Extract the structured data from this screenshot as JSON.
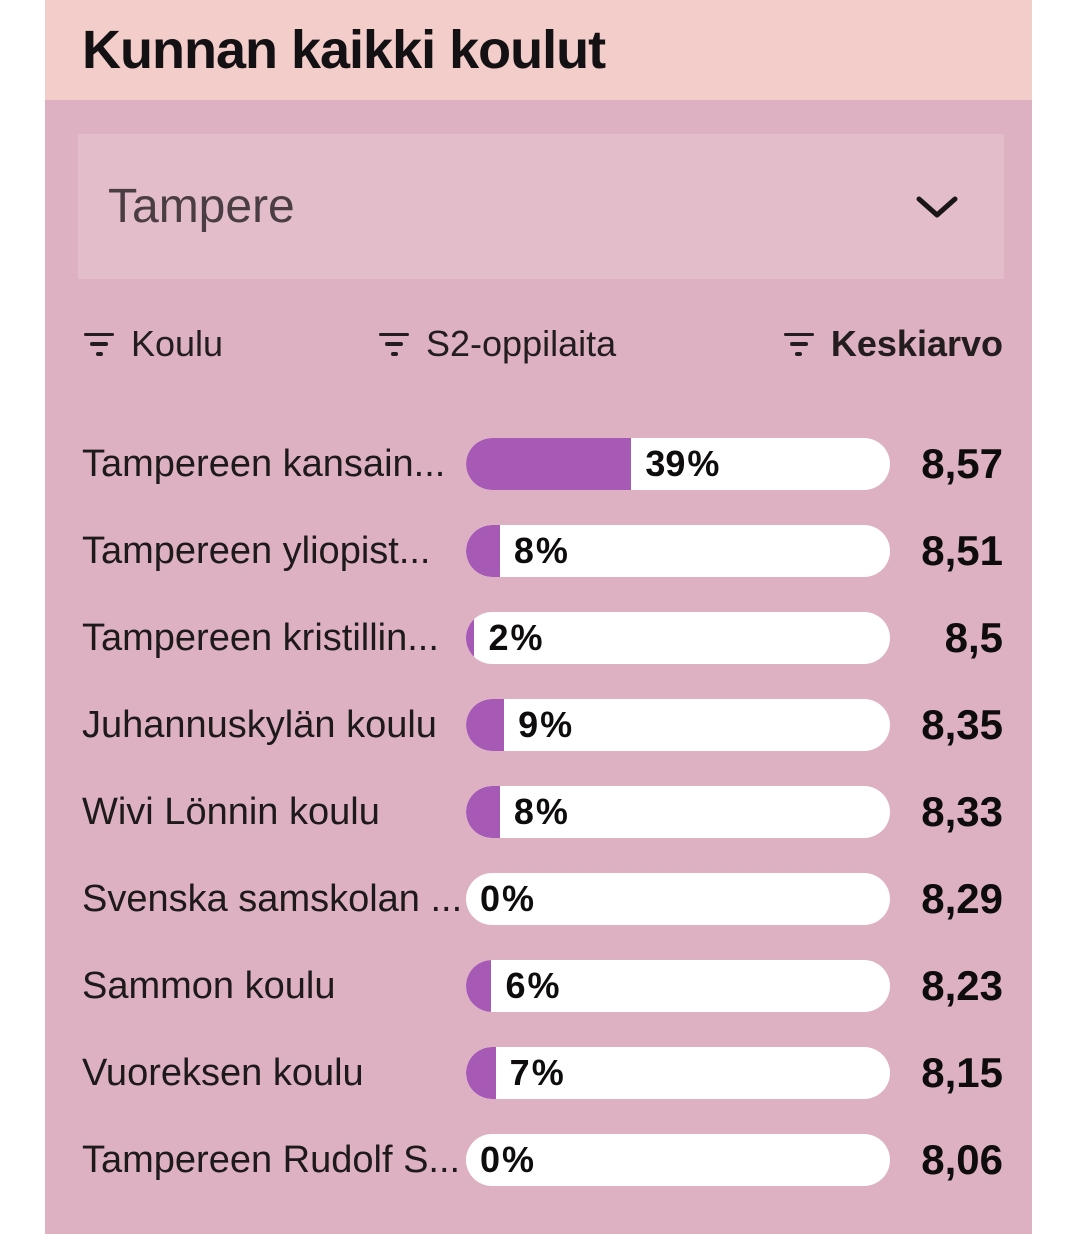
{
  "title": "Kunnan kaikki koulut",
  "municipality_selector": {
    "value": "Tampere"
  },
  "columns": {
    "koulu": "Koulu",
    "s2": "S2-oppilaita",
    "keskiarvo": "Keskiarvo"
  },
  "table": {
    "rows": [
      {
        "school": "Tampereen kansain...",
        "s2_pct": 39,
        "s2_label": "39 %",
        "keskiarvo": "8,57"
      },
      {
        "school": "Tampereen yliopist...",
        "s2_pct": 8,
        "s2_label": "8 %",
        "keskiarvo": "8,51"
      },
      {
        "school": "Tampereen kristillin...",
        "s2_pct": 2,
        "s2_label": "2 %",
        "keskiarvo": "8,5"
      },
      {
        "school": "Juhannuskylän koulu",
        "s2_pct": 9,
        "s2_label": "9 %",
        "keskiarvo": "8,35"
      },
      {
        "school": "Wivi Lönnin koulu",
        "s2_pct": 8,
        "s2_label": "8 %",
        "keskiarvo": "8,33"
      },
      {
        "school": "Svenska samskolan ...",
        "s2_pct": 0,
        "s2_label": "0 %",
        "keskiarvo": "8,29"
      },
      {
        "school": "Sammon koulu",
        "s2_pct": 6,
        "s2_label": "6 %",
        "keskiarvo": "8,23"
      },
      {
        "school": "Vuoreksen koulu",
        "s2_pct": 7,
        "s2_label": "7 %",
        "keskiarvo": "8,15"
      },
      {
        "school": "Tampereen Rudolf S...",
        "s2_pct": 0,
        "s2_label": "0 %",
        "keskiarvo": "8,06"
      }
    ]
  },
  "colors": {
    "accent": "#a65ab5",
    "header-bg": "#f2cdc9",
    "body-bg": "#ddb1c2",
    "select-bg": "#e3bdca",
    "bar-bg": "#ffffff"
  },
  "chart_data": {
    "type": "bar",
    "title": "Kunnan kaikki koulut",
    "filter": "Tampere",
    "categories": [
      "Tampereen kansain...",
      "Tampereen yliopist...",
      "Tampereen kristillin...",
      "Juhannuskylän koulu",
      "Wivi Lönnin koulu",
      "Svenska samskolan ...",
      "Sammon koulu",
      "Vuoreksen koulu",
      "Tampereen Rudolf S..."
    ],
    "series": [
      {
        "name": "S2-oppilaita",
        "unit": "%",
        "values": [
          39,
          8,
          2,
          9,
          8,
          0,
          6,
          7,
          0
        ],
        "axis_range": [
          0,
          100
        ]
      },
      {
        "name": "Keskiarvo",
        "values": [
          8.57,
          8.51,
          8.5,
          8.35,
          8.33,
          8.29,
          8.23,
          8.15,
          8.06
        ]
      }
    ],
    "orientation": "horizontal",
    "legend": false,
    "grid": false
  }
}
